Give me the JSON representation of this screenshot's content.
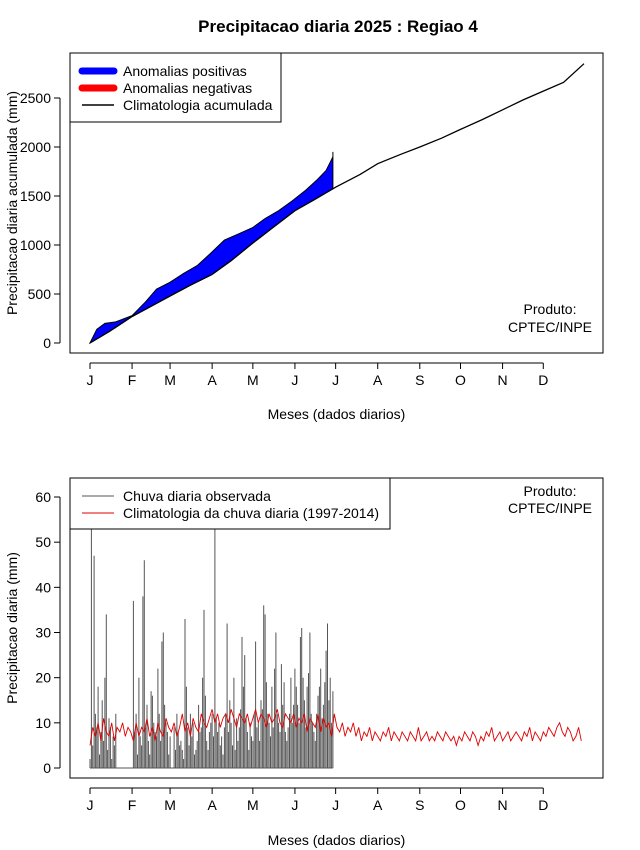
{
  "title": "Precipitacao diaria 2025 : Regiao 4",
  "month_labels": [
    "J",
    "F",
    "M",
    "A",
    "M",
    "J",
    "J",
    "A",
    "S",
    "O",
    "N",
    "D"
  ],
  "month_start_days": [
    1,
    32,
    60,
    91,
    121,
    152,
    182,
    213,
    244,
    274,
    305,
    335
  ],
  "chart_data": [
    {
      "type": "area",
      "xlabel": "Meses (dados diarios)",
      "ylabel": "Precipitacao diaria acumulada (mm)",
      "xlim": [
        1,
        365
      ],
      "ylim": [
        0,
        2900
      ],
      "yticks": [
        "0",
        "500",
        "1000",
        "1500",
        "2000",
        "2500"
      ],
      "yticks_values": [
        0,
        500,
        1000,
        1500,
        2000,
        2500
      ],
      "legend_placement": "top-left",
      "legend": {
        "positive": "Anomalias positivas",
        "negative": "Anomalias negativas",
        "climatology": "Climatologia acumulada"
      },
      "annotation": [
        "Produto:",
        "CPTEC/INPE"
      ],
      "colors": {
        "positive": "#0000ff",
        "negative": "#ff0000",
        "climatology": "#000000"
      },
      "climatology": {
        "x": [
          1,
          15,
          32,
          46,
          60,
          75,
          91,
          105,
          121,
          135,
          152,
          166,
          182,
          200,
          213,
          230,
          244,
          260,
          274,
          290,
          305,
          320,
          335,
          350,
          365
        ],
        "y": [
          0,
          115,
          270,
          375,
          480,
          590,
          700,
          840,
          1020,
          1170,
          1350,
          1460,
          1590,
          1720,
          1830,
          1925,
          2000,
          2090,
          2180,
          2280,
          2380,
          2480,
          2570,
          2660,
          2850
        ]
      },
      "observed": {
        "x": [
          1,
          6,
          12,
          20,
          32,
          42,
          50,
          60,
          70,
          80,
          91,
          100,
          110,
          121,
          130,
          140,
          150,
          160,
          168,
          175,
          180,
          180.01
        ],
        "y": [
          0,
          140,
          200,
          215,
          280,
          420,
          550,
          620,
          710,
          790,
          930,
          1050,
          1110,
          1180,
          1270,
          1350,
          1450,
          1560,
          1660,
          1760,
          1900,
          1950
        ]
      }
    },
    {
      "type": "bar",
      "xlabel": "Meses (dados diarios)",
      "ylabel": "Precipitacao diaria (mm)",
      "xlim": [
        1,
        365
      ],
      "ylim": [
        0,
        62
      ],
      "yticks": [
        "0",
        "10",
        "20",
        "30",
        "40",
        "50",
        "60"
      ],
      "yticks_values": [
        0,
        10,
        20,
        30,
        40,
        50,
        60
      ],
      "legend_placement": "top-left",
      "legend": {
        "observed": "Chuva diaria observada",
        "climatology": "Climatologia da chuva diaria (1997-2014)"
      },
      "annotation": [
        "Produto:",
        "CPTEC/INPE"
      ],
      "colors": {
        "observed": "#555555",
        "climatology": "#e00000"
      },
      "observed_daily": {
        "x": [
          1,
          2,
          3,
          4,
          5,
          6,
          7,
          8,
          9,
          10,
          11,
          12,
          13,
          14,
          15,
          16,
          17,
          18,
          19,
          20,
          21,
          22,
          23,
          24,
          25,
          26,
          27,
          28,
          29,
          30,
          31,
          32,
          33,
          34,
          35,
          36,
          37,
          38,
          39,
          40,
          41,
          42,
          43,
          44,
          45,
          46,
          47,
          48,
          49,
          50,
          51,
          52,
          53,
          54,
          55,
          56,
          57,
          58,
          59,
          60,
          61,
          62,
          63,
          64,
          65,
          66,
          67,
          68,
          69,
          70,
          71,
          72,
          73,
          74,
          75,
          76,
          77,
          78,
          79,
          80,
          81,
          82,
          83,
          84,
          85,
          86,
          87,
          88,
          89,
          90,
          91,
          92,
          93,
          94,
          95,
          96,
          97,
          98,
          99,
          100,
          101,
          102,
          103,
          104,
          105,
          106,
          107,
          108,
          109,
          110,
          111,
          112,
          113,
          114,
          115,
          116,
          117,
          118,
          119,
          120,
          121,
          122,
          123,
          124,
          125,
          126,
          127,
          128,
          129,
          130,
          131,
          132,
          133,
          134,
          135,
          136,
          137,
          138,
          139,
          140,
          141,
          142,
          143,
          144,
          145,
          146,
          147,
          148,
          149,
          150,
          151,
          152,
          153,
          154,
          155,
          156,
          157,
          158,
          159,
          160,
          161,
          162,
          163,
          164,
          165,
          166,
          167,
          168,
          169,
          170,
          171,
          172,
          173,
          174,
          175,
          176,
          177,
          178,
          179,
          180
        ],
        "values": [
          2,
          53,
          5,
          47,
          12,
          9,
          18,
          3,
          8,
          15,
          6,
          20,
          34,
          4,
          11,
          9,
          2,
          7,
          5,
          12,
          0,
          0,
          0,
          0,
          0,
          0,
          0,
          0,
          0,
          0,
          0,
          0,
          37,
          8,
          12,
          3,
          20,
          7,
          5,
          38,
          46,
          9,
          14,
          6,
          3,
          17,
          16,
          10,
          8,
          7,
          22,
          12,
          6,
          28,
          30,
          14,
          10,
          8,
          3,
          7,
          0,
          0,
          9,
          4,
          12,
          8,
          5,
          6,
          4,
          2,
          33,
          18,
          9,
          5,
          12,
          7,
          10,
          3,
          4,
          6,
          14,
          8,
          9,
          20,
          35,
          16,
          6,
          4,
          8,
          10,
          12,
          7,
          54,
          11,
          8,
          10,
          5,
          7,
          3,
          9,
          12,
          32,
          8,
          15,
          10,
          5,
          20,
          4,
          11,
          6,
          9,
          13,
          29,
          18,
          25,
          11,
          8,
          4,
          10,
          7,
          6,
          12,
          28,
          9,
          10,
          6,
          15,
          13,
          36,
          34,
          19,
          12,
          10,
          7,
          18,
          9,
          22,
          30,
          12,
          10,
          8,
          23,
          14,
          19,
          8,
          6,
          9,
          12,
          20,
          10,
          14,
          22,
          18,
          14,
          10,
          29,
          31,
          20,
          15,
          9,
          18,
          21,
          30,
          12,
          10,
          8,
          6,
          12,
          16,
          18,
          22,
          11,
          14,
          19,
          26,
          32,
          15,
          20,
          10,
          17
        ]
      },
      "climatology_daily": {
        "x": [
          1,
          3,
          5,
          7,
          9,
          11,
          13,
          15,
          17,
          19,
          21,
          23,
          25,
          27,
          29,
          31,
          33,
          35,
          37,
          39,
          41,
          43,
          45,
          47,
          49,
          51,
          53,
          55,
          57,
          59,
          61,
          63,
          65,
          67,
          69,
          71,
          73,
          75,
          77,
          79,
          81,
          83,
          85,
          87,
          89,
          91,
          93,
          95,
          97,
          99,
          101,
          103,
          105,
          107,
          109,
          111,
          113,
          115,
          117,
          119,
          121,
          123,
          125,
          127,
          129,
          131,
          133,
          135,
          137,
          139,
          141,
          143,
          145,
          147,
          149,
          151,
          153,
          155,
          157,
          159,
          161,
          163,
          165,
          167,
          169,
          171,
          173,
          175,
          177,
          179,
          181,
          183,
          185,
          187,
          189,
          191,
          193,
          195,
          197,
          199,
          201,
          203,
          205,
          207,
          209,
          211,
          213,
          215,
          217,
          219,
          221,
          223,
          225,
          227,
          229,
          231,
          233,
          235,
          237,
          239,
          241,
          243,
          245,
          247,
          249,
          251,
          253,
          255,
          257,
          259,
          261,
          263,
          265,
          267,
          269,
          271,
          273,
          275,
          277,
          279,
          281,
          283,
          285,
          287,
          289,
          291,
          293,
          295,
          297,
          299,
          301,
          303,
          305,
          307,
          309,
          311,
          313,
          315,
          317,
          319,
          321,
          323,
          325,
          327,
          329,
          331,
          333,
          335,
          337,
          339,
          341,
          343,
          345,
          347,
          349,
          351,
          353,
          355,
          357,
          359,
          361,
          363
        ],
        "values": [
          5,
          9,
          7,
          10,
          6,
          11,
          8,
          7,
          10,
          6,
          9,
          8,
          10,
          7,
          9,
          8,
          6,
          10,
          7,
          9,
          8,
          11,
          7,
          9,
          6,
          10,
          8,
          7,
          11,
          9,
          8,
          10,
          7,
          9,
          12,
          8,
          10,
          7,
          11,
          9,
          8,
          12,
          10,
          9,
          11,
          13,
          10,
          12,
          9,
          11,
          12,
          10,
          13,
          11,
          9,
          12,
          11,
          10,
          12,
          9,
          11,
          13,
          10,
          12,
          11,
          9,
          12,
          10,
          11,
          13,
          10,
          9,
          12,
          11,
          10,
          12,
          9,
          11,
          10,
          12,
          8,
          11,
          10,
          9,
          12,
          8,
          11,
          9,
          10,
          7,
          12,
          9,
          8,
          10,
          7,
          9,
          8,
          10,
          7,
          9,
          6,
          8,
          7,
          9,
          6,
          8,
          7,
          6,
          8,
          7,
          9,
          6,
          8,
          7,
          6,
          8,
          7,
          6,
          8,
          7,
          6,
          9,
          6,
          7,
          8,
          6,
          7,
          6,
          8,
          7,
          6,
          8,
          7,
          6,
          7,
          5,
          7,
          6,
          8,
          7,
          6,
          8,
          7,
          5,
          7,
          6,
          8,
          7,
          9,
          6,
          7,
          8,
          6,
          7,
          8,
          6,
          7,
          8,
          7,
          6,
          8,
          7,
          9,
          6,
          8,
          7,
          6,
          8,
          7,
          9,
          8,
          7,
          9,
          10,
          8,
          7,
          9,
          8,
          6,
          7,
          9,
          6
        ]
      }
    }
  ]
}
